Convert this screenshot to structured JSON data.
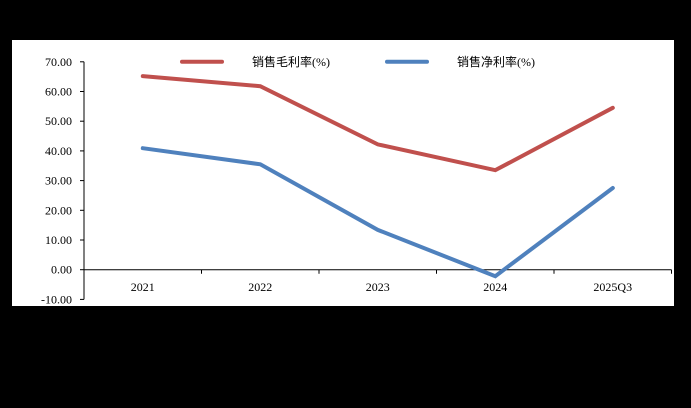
{
  "chart_data": {
    "type": "line",
    "title": "",
    "xlabel": "",
    "ylabel": "",
    "categories": [
      "2021",
      "2022",
      "2023",
      "2024",
      "2025Q3"
    ],
    "series": [
      {
        "name": "销售毛利率(%)",
        "color": "#c0504d",
        "values": [
          65.2,
          61.8,
          42.2,
          33.5,
          54.5
        ]
      },
      {
        "name": "销售净利率(%)",
        "color": "#4f81bd",
        "values": [
          40.9,
          35.5,
          13.4,
          -2.2,
          27.5
        ]
      }
    ],
    "ylim": [
      -10,
      70
    ],
    "yticks": [
      "70.00",
      "60.00",
      "50.00",
      "40.00",
      "30.00",
      "20.00",
      "10.00",
      "0.00",
      "-10.00"
    ],
    "grid": false,
    "legend_position": "top"
  },
  "legend": {
    "items": [
      {
        "label": "销售毛利率(%)",
        "color": "#c0504d"
      },
      {
        "label": "销售净利率(%)",
        "color": "#4f81bd"
      }
    ]
  },
  "colors": {
    "background": "#000000",
    "panel": "#ffffff",
    "axis": "#000000"
  }
}
